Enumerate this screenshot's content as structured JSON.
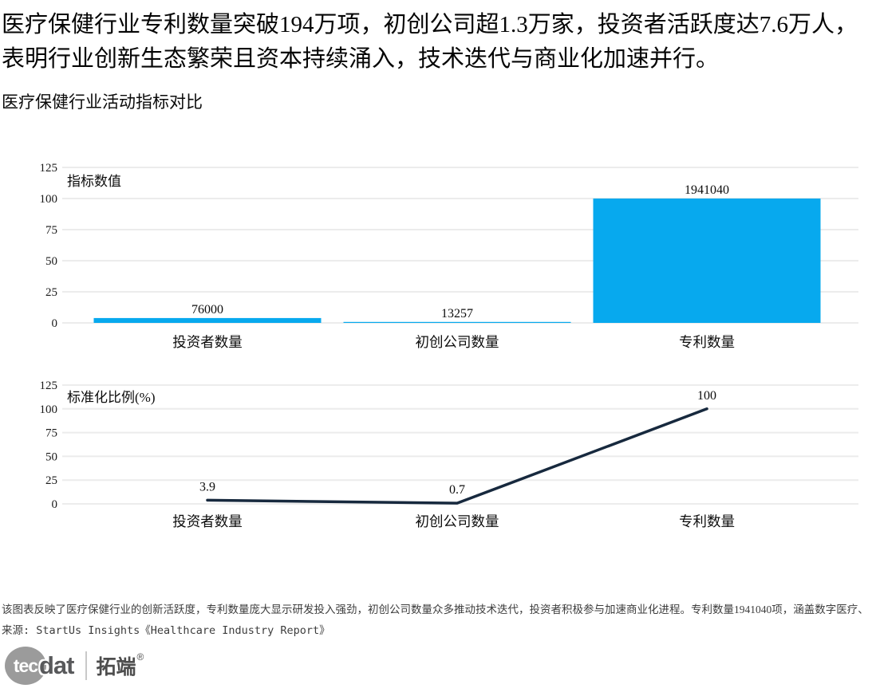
{
  "headline": "医疗保健行业专利数量突破194万项，初创公司超1.3万家，投资者活跃度达7.6万人，表明行业创新生态繁荣且资本持续涌入，技术迭代与商业化加速并行。",
  "subtitle": "医疗保健行业活动指标对比",
  "colors": {
    "bar": "#07a9ee",
    "line": "#17293e",
    "grid": "#ececec",
    "tick_text": "#1a1a1a",
    "footnote_text": "#3d3d3d"
  },
  "chart_data": [
    {
      "type": "bar",
      "title": "指标数值",
      "categories": [
        "投资者数量",
        "初创公司数量",
        "专利数量"
      ],
      "values": [
        76000,
        13257,
        1941040
      ],
      "axis_values": [
        3.9,
        0.7,
        100
      ],
      "data_labels": [
        "76000",
        "13257",
        "1941040"
      ],
      "ylim": [
        0,
        125
      ],
      "yticks": [
        0,
        25,
        50,
        75,
        100,
        125
      ],
      "grid": true,
      "legend": "none",
      "bar_color": "#07a9ee"
    },
    {
      "type": "line",
      "title": "标准化比例(%)",
      "categories": [
        "投资者数量",
        "初创公司数量",
        "专利数量"
      ],
      "values": [
        3.9,
        0.7,
        100
      ],
      "data_labels": [
        "3.9",
        "0.7",
        "100"
      ],
      "ylim": [
        0,
        125
      ],
      "yticks": [
        0,
        25,
        50,
        75,
        100,
        125
      ],
      "grid": true,
      "legend": "none",
      "line_color": "#17293e"
    }
  ],
  "footer": {
    "note": "该图表反映了医疗保健行业的创新活跃度，专利数量庞大显示研发投入强劲，初创公司数量众多推动技术迭代，投资者积极参与加速商业化进程。专利数量1941040项，涵盖数字医疗、",
    "source": "来源: StartUs Insights《Healthcare Industry Report》"
  },
  "logo": {
    "circle_text": "tec",
    "suffix": "dat",
    "brand": "拓端",
    "registered": "®"
  }
}
